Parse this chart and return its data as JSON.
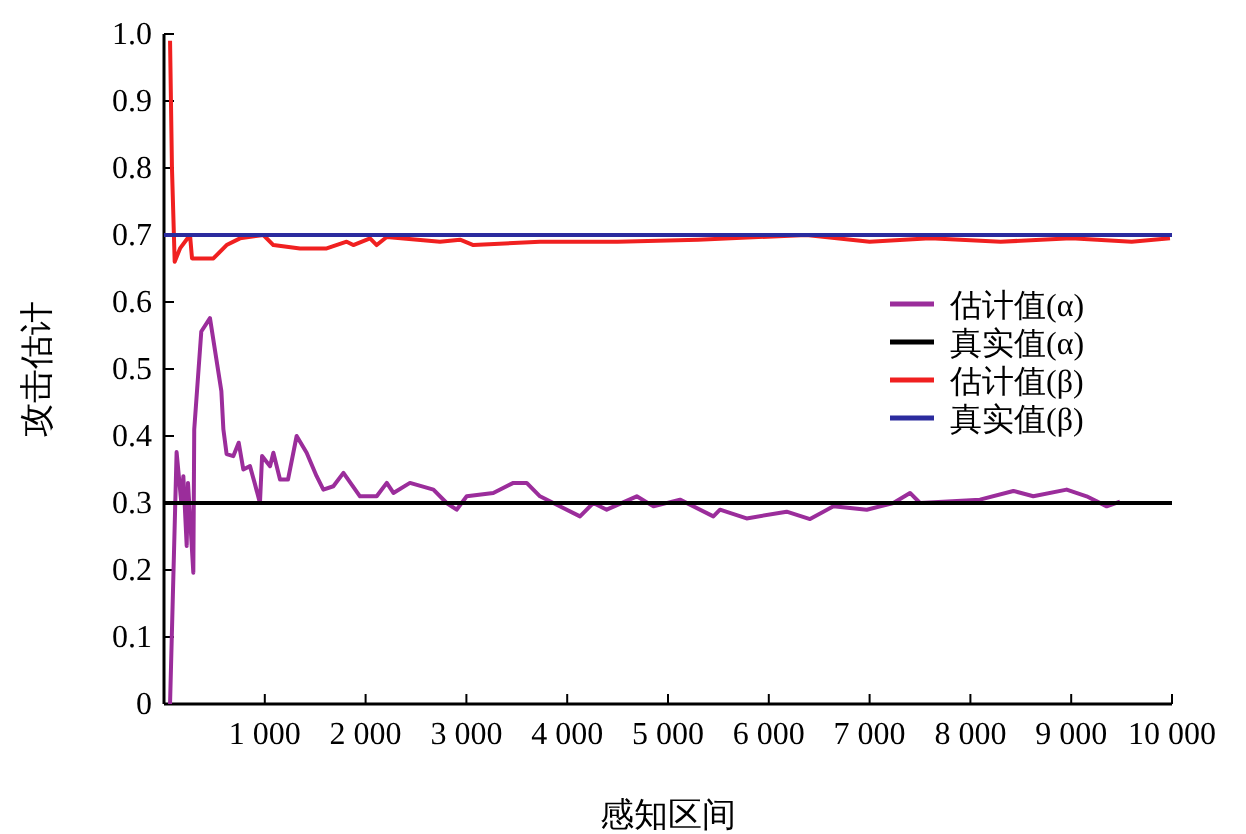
{
  "chart_data": {
    "type": "line",
    "xlabel": "感知区间",
    "ylabel": "攻击估计",
    "xlim": [
      0,
      10000
    ],
    "ylim": [
      0,
      1
    ],
    "xticks": [
      {
        "value": 1000,
        "label": "1 000"
      },
      {
        "value": 2000,
        "label": "2 000"
      },
      {
        "value": 3000,
        "label": "3 000"
      },
      {
        "value": 4000,
        "label": "4 000"
      },
      {
        "value": 5000,
        "label": "5 000"
      },
      {
        "value": 6000,
        "label": "6 000"
      },
      {
        "value": 7000,
        "label": "7 000"
      },
      {
        "value": 8000,
        "label": "8 000"
      },
      {
        "value": 9000,
        "label": "9 000"
      },
      {
        "value": 10000,
        "label": "10 000"
      }
    ],
    "yticks": [
      0,
      0.1,
      0.2,
      0.3,
      0.4,
      0.5,
      0.6,
      0.7,
      0.8,
      0.9,
      {
        "value": 1,
        "label": "1.0"
      }
    ],
    "grid": false,
    "legend": "right",
    "marker": "none",
    "line_style": "solid",
    "series": [
      {
        "name": "估计值(α)",
        "color": "#9b2d9b",
        "x": [
          60,
          125,
          172,
          192,
          225,
          238,
          291,
          300,
          370,
          456,
          569,
          589,
          621,
          688,
          741,
          787,
          853,
          899,
          952,
          973,
          1052,
          1085,
          1151,
          1230,
          1316,
          1415,
          1514,
          1581,
          1680,
          1780,
          1944,
          2110,
          2210,
          2276,
          2440,
          2673,
          2804,
          2903,
          3003,
          3267,
          3466,
          3598,
          3730,
          4127,
          4259,
          4392,
          4690,
          4856,
          5119,
          5450,
          5516,
          5780,
          6177,
          6409,
          6641,
          6972,
          7236,
          7401,
          7500,
          8095,
          8426,
          8624,
          8955,
          9153,
          9352,
          9484
        ],
        "values": [
          0,
          0.376,
          0.3,
          0.34,
          0.236,
          0.33,
          0.196,
          0.41,
          0.556,
          0.576,
          0.467,
          0.41,
          0.373,
          0.37,
          0.39,
          0.35,
          0.355,
          0.33,
          0.3,
          0.37,
          0.355,
          0.375,
          0.335,
          0.335,
          0.4,
          0.375,
          0.34,
          0.32,
          0.325,
          0.345,
          0.31,
          0.31,
          0.33,
          0.315,
          0.33,
          0.32,
          0.3,
          0.29,
          0.31,
          0.315,
          0.33,
          0.33,
          0.31,
          0.28,
          0.3,
          0.29,
          0.31,
          0.295,
          0.305,
          0.28,
          0.29,
          0.277,
          0.287,
          0.276,
          0.295,
          0.29,
          0.3,
          0.315,
          0.3,
          0.305,
          0.318,
          0.31,
          0.32,
          0.31,
          0.295,
          0.302
        ]
      },
      {
        "name": "真实值(α)",
        "color": "#000000",
        "x": [
          0,
          10000
        ],
        "values": [
          0.3,
          0.3
        ]
      },
      {
        "name": "估计值(β)",
        "color": "#f02020",
        "x": [
          60,
          79,
          106,
          159,
          258,
          278,
          490,
          621,
          754,
          986,
          1085,
          1349,
          1614,
          1812,
          1878,
          2044,
          2110,
          2210,
          2738,
          2937,
          3069,
          3730,
          4500,
          5300,
          6373,
          7000,
          7600,
          8300,
          9000,
          9600,
          9980
        ],
        "values": [
          0.99,
          0.8,
          0.66,
          0.68,
          0.7,
          0.665,
          0.665,
          0.685,
          0.695,
          0.7,
          0.685,
          0.68,
          0.68,
          0.69,
          0.685,
          0.695,
          0.685,
          0.697,
          0.69,
          0.693,
          0.685,
          0.69,
          0.69,
          0.693,
          0.7,
          0.69,
          0.695,
          0.69,
          0.695,
          0.69,
          0.695
        ]
      },
      {
        "name": "真实值(β)",
        "color": "#2b2b9e",
        "x": [
          0,
          10000
        ],
        "values": [
          0.7,
          0.7
        ]
      }
    ]
  }
}
